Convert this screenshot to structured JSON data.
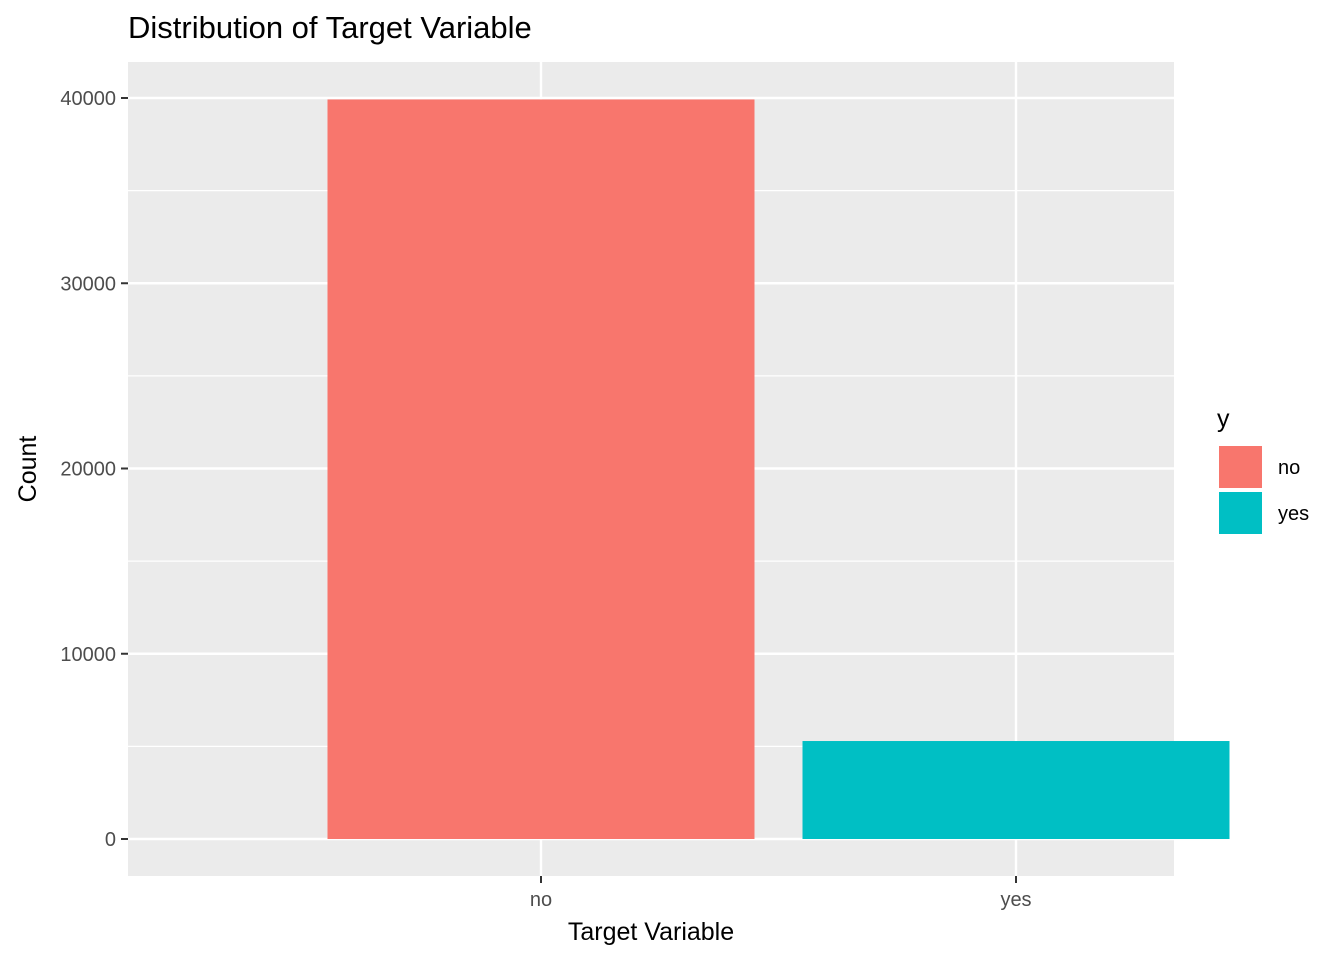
{
  "chart_data": {
    "type": "bar",
    "title": "Distribution of Target Variable",
    "xlabel": "Target Variable",
    "ylabel": "Count",
    "categories": [
      "no",
      "yes"
    ],
    "values": [
      39922,
      5289
    ],
    "colors": [
      "#F8766D",
      "#00BFC4"
    ],
    "ylim": [
      0,
      41900
    ],
    "yticks": [
      0,
      10000,
      20000,
      30000,
      40000
    ],
    "ytick_labels": [
      "0",
      "10000",
      "20000",
      "30000",
      "40000"
    ],
    "grid": true,
    "panel_background": "#EBEBEB",
    "legend": {
      "title": "y",
      "position": "right",
      "entries": [
        "no",
        "yes"
      ]
    }
  }
}
